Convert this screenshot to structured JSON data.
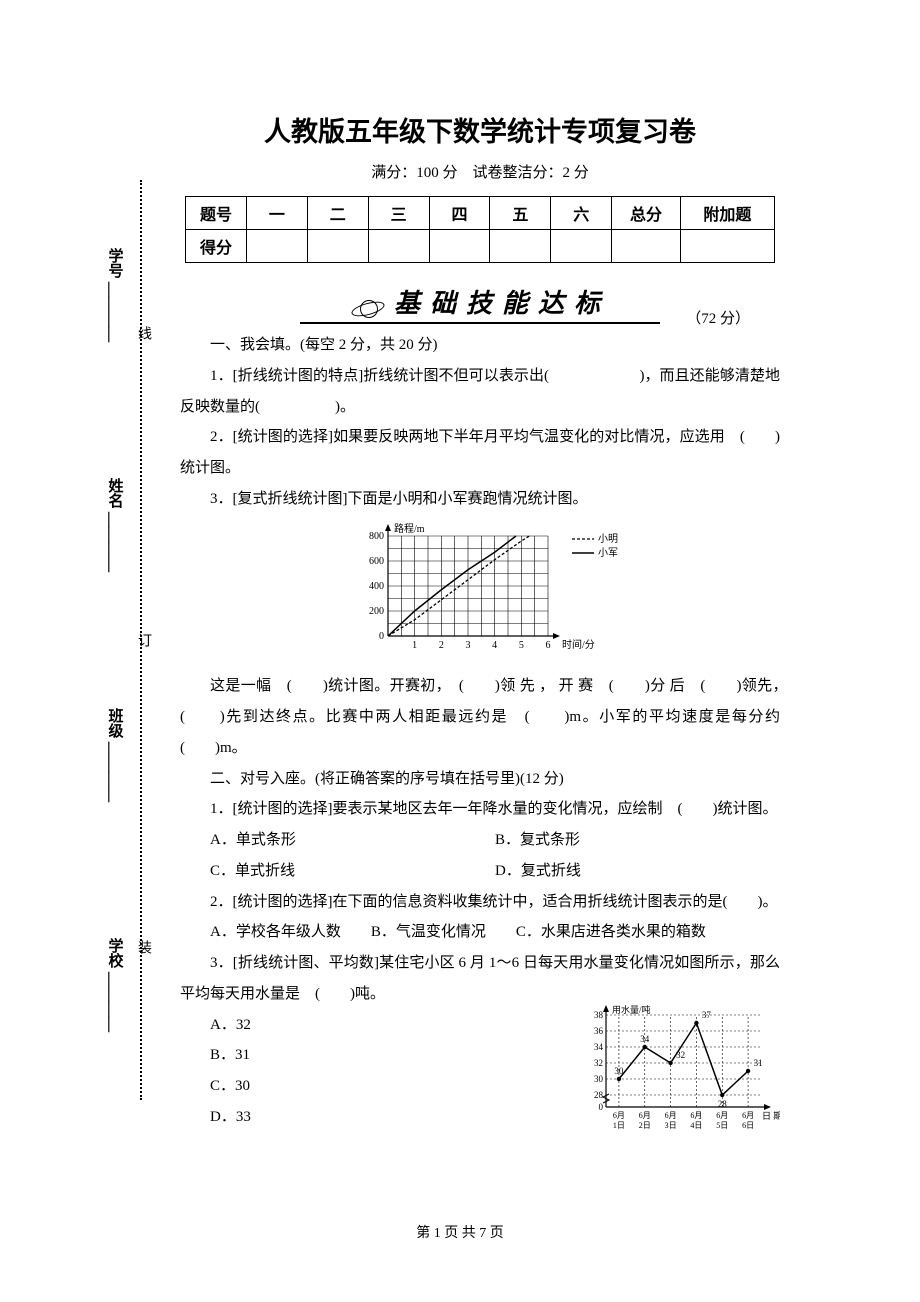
{
  "title": "人教版五年级下数学统计专项复习卷",
  "subtitle": "满分：100 分　试卷整洁分：2 分",
  "scoreTable": {
    "headers": [
      "题号",
      "一",
      "二",
      "三",
      "四",
      "五",
      "六",
      "总分",
      "附加题"
    ],
    "row2label": "得分"
  },
  "banner": {
    "label": "基础技能达标",
    "score": "（72 分）"
  },
  "section1": {
    "heading": "一、我会填。(每空 2 分，共 20 分)",
    "q1": "1．[折线统计图的特点]折线统计图不但可以表示出(　　　　　　)，而且还能够清楚地反映数量的(　　　　　)。",
    "q2": "2．[统计图的选择]如果要反映两地下半年月平均气温变化的对比情况，应选用　(　　)统计图。",
    "q3_intro": "3．[复式折线统计图]下面是小明和小军赛跑情况统计图。",
    "q3_text": "这是一幅　(　　)统计图。开赛初，　(　　)领 先 ， 开 赛　(　　)分 后　(　　)领先，　(　　)先到达终点。比赛中两人相距最远约是　(　　)m。小军的平均速度是每分约　(　　)m。"
  },
  "section2": {
    "heading": "二、对号入座。(将正确答案的序号填在括号里)(12 分)",
    "q1": "1．[统计图的选择]要表示某地区去年一年降水量的变化情况，应绘制　(　　)统计图。",
    "q1_opts": {
      "a": "A．单式条形",
      "b": "B．复式条形",
      "c": "C．单式折线",
      "d": "D．复式折线"
    },
    "q2": "2．[统计图的选择]在下面的信息资料收集统计中，适合用折线统计图表示的是(　　)。",
    "q2_opts": "A．学校各年级人数　　B．气温变化情况　　C．水果店进各类水果的箱数",
    "q3": "3．[折线统计图、平均数]某住宅小区 6 月 1～6 日每天用水量变化情况如图所示，那么平均每天用水量是　(　　)吨。",
    "q3_opts": {
      "a": "A．32",
      "b": "B．31",
      "c": "C．30",
      "d": "D．33"
    }
  },
  "chart1": {
    "ylabel": "路程/m",
    "xlabel": "时间/分",
    "legend": {
      "dashed": "小明",
      "solid": "小军"
    },
    "ymax": 800,
    "ytick": 200,
    "xmax": 6,
    "xtick": 1,
    "grid_color": "#000000",
    "series_solid": [
      [
        0,
        0
      ],
      [
        1,
        200
      ],
      [
        2,
        370
      ],
      [
        3,
        530
      ],
      [
        4,
        670
      ],
      [
        4.8,
        800
      ]
    ],
    "series_dashed": [
      [
        0,
        0
      ],
      [
        1,
        130
      ],
      [
        2,
        290
      ],
      [
        3,
        450
      ],
      [
        4,
        610
      ],
      [
        5,
        760
      ],
      [
        5.3,
        800
      ]
    ],
    "fontsize": 10
  },
  "chart2": {
    "ylabel": "用水量/吨",
    "xlabel": "日 期",
    "xticks": [
      "6月1日",
      "6月2日",
      "6月3日",
      "6月4日",
      "6月5日",
      "6月6日"
    ],
    "yticks": [
      0,
      28,
      30,
      32,
      34,
      36,
      38
    ],
    "values": [
      30,
      34,
      32,
      37,
      28,
      31
    ],
    "show_labels": [
      30,
      34,
      32,
      37,
      28,
      31
    ],
    "grid_color": "#000000",
    "line_color": "#000000",
    "fontsize": 9
  },
  "binding": {
    "school": "学校",
    "class": "班级",
    "name": "姓名",
    "id": "学号",
    "dotlabels": [
      "装",
      "订",
      "线"
    ]
  },
  "footer": "第 1 页 共 7 页"
}
